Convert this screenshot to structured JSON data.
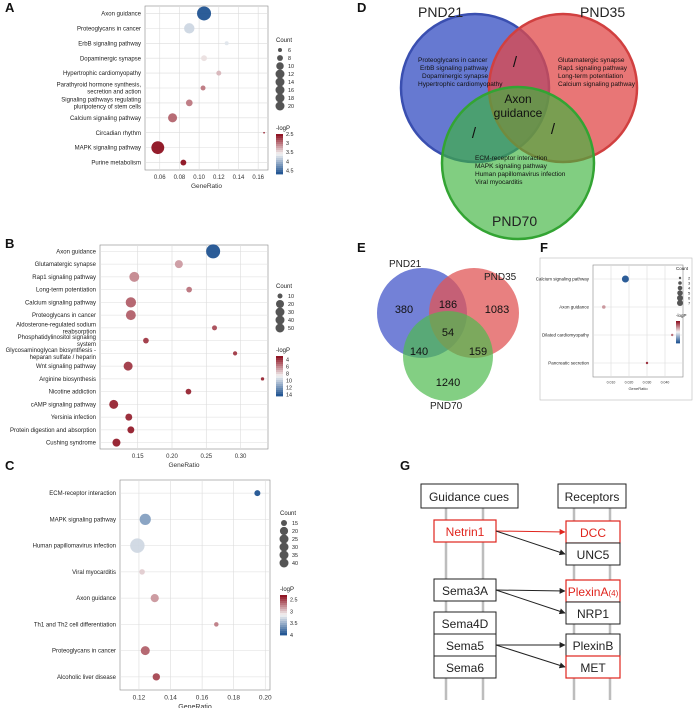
{
  "panel_letters": {
    "A": "A",
    "B": "B",
    "C": "C",
    "D": "D",
    "E": "E",
    "F": "F",
    "G": "G"
  },
  "colors": {
    "low_logp": "#1a4f8f",
    "mid_logp": "#f4f4f4",
    "high_logp": "#8b0a1a",
    "venn_pnd21": "#4b62c9",
    "venn_pnd35": "#e04848",
    "venn_pnd70": "#3db43d",
    "network_highlight": "#e0241d"
  },
  "chart_data": [
    {
      "panel": "A",
      "type": "scatter",
      "xlabel": "GeneRatio",
      "xlim": [
        0.045,
        0.17
      ],
      "xticks": [
        0.06,
        0.08,
        0.1,
        0.12,
        0.14,
        0.16
      ],
      "xtick_labels": [
        "0.06",
        "0.08",
        "0.10",
        "0.12",
        "0.14",
        "0.16"
      ],
      "categories": [
        "Axon guidance",
        "Proteoglycans in cancer",
        "ErbB signaling pathway",
        "Dopaminergic synapse",
        "Hypertrophic cardiomyopathy",
        "Parathyroid hormone synthesis, secretion and action",
        "Signaling pathways regulating pluripotency of stem cells",
        "Calcium signaling pathway",
        "Circadian rhythm",
        "MAPK signaling pathway",
        "Purine metabolism"
      ],
      "category_lines": [
        [
          "Axon guidance"
        ],
        [
          "Proteoglycans in cancer"
        ],
        [
          "ErbB signaling pathway"
        ],
        [
          "Dopaminergic synapse"
        ],
        [
          "Hypertrophic cardiomyopathy"
        ],
        [
          "Parathyroid hormone synthesis,",
          "secretion and action"
        ],
        [
          "Signaling pathways regulating",
          "pluripotency of stem cells"
        ],
        [
          "Calcium signaling pathway"
        ],
        [
          "Circadian rhythm"
        ],
        [
          "MAPK signaling pathway"
        ],
        [
          "Purine metabolism"
        ]
      ],
      "x": [
        0.105,
        0.09,
        0.128,
        0.105,
        0.12,
        0.104,
        0.09,
        0.073,
        0.166,
        0.058,
        0.084
      ],
      "count": [
        20,
        14,
        6,
        8,
        7,
        7,
        9,
        12,
        4,
        18,
        8
      ],
      "logp": [
        4.7,
        3.8,
        3.7,
        3.5,
        3.3,
        3.0,
        3.0,
        2.9,
        2.6,
        2.5,
        2.5
      ],
      "size_legend_title": "Count",
      "size_legend": [
        6,
        8,
        10,
        12,
        14,
        16,
        18,
        20
      ],
      "color_legend_title": "-logP",
      "color_legend_ticks": [
        2.5,
        3.0,
        3.5,
        4.0,
        4.5
      ],
      "color_range": [
        2.5,
        4.7
      ]
    },
    {
      "panel": "B",
      "type": "scatter",
      "xlabel": "GeneRatio",
      "xlim": [
        0.095,
        0.34
      ],
      "xticks": [
        0.15,
        0.2,
        0.25,
        0.3
      ],
      "xtick_labels": [
        "0.15",
        "0.20",
        "0.25",
        "0.30"
      ],
      "categories": [
        "Axon guidance",
        "Glutamatergic synapse",
        "Rap1 signaling pathway",
        "Long-term potentiation",
        "Calcium signaling pathway",
        "Proteoglycans in cancer",
        "Aldosterone-regulated sodium reabsorption",
        "Phosphatidylinositol signaling system",
        "Glycosaminoglycan biosynthesis - heparan sulfate / heparin",
        "Wnt signaling pathway",
        "Arginine biosynthesis",
        "Nicotine addiction",
        "cAMP signaling pathway",
        "Yersinia infection",
        "Protein digestion and absorption",
        "Cushing syndrome"
      ],
      "category_lines": [
        [
          "Axon guidance"
        ],
        [
          "Glutamatergic synapse"
        ],
        [
          "Rap1 signaling pathway"
        ],
        [
          "Long-term potentiation"
        ],
        [
          "Calcium signaling pathway"
        ],
        [
          "Proteoglycans in cancer"
        ],
        [
          "Aldosterone-regulated sodium",
          "reabsorption"
        ],
        [
          "Phosphatidylinositol signaling",
          "system"
        ],
        [
          "Glycosaminoglycan biosynthesis -",
          "heparan sulfate / heparin"
        ],
        [
          "Wnt signaling pathway"
        ],
        [
          "Arginine biosynthesis"
        ],
        [
          "Nicotine addiction"
        ],
        [
          "cAMP signaling pathway"
        ],
        [
          "Yersinia infection"
        ],
        [
          "Protein digestion and absorption"
        ],
        [
          "Cushing syndrome"
        ]
      ],
      "x": [
        0.26,
        0.21,
        0.145,
        0.225,
        0.14,
        0.14,
        0.262,
        0.162,
        0.292,
        0.136,
        0.332,
        0.224,
        0.115,
        0.137,
        0.14,
        0.119
      ],
      "count": [
        50,
        20,
        28,
        12,
        30,
        28,
        10,
        12,
        8,
        24,
        6,
        12,
        24,
        16,
        16,
        20
      ],
      "logp": [
        14.5,
        6.5,
        6.0,
        5.5,
        5.0,
        5.0,
        4.5,
        4.0,
        4.0,
        4.0,
        3.5,
        3.5,
        3.5,
        3.5,
        3.3,
        3.3
      ],
      "size_legend_title": "Count",
      "size_legend": [
        10,
        20,
        30,
        40,
        50
      ],
      "color_legend_title": "-logP",
      "color_legend_ticks": [
        4,
        6,
        8,
        10,
        12,
        14
      ],
      "color_range": [
        3,
        14.5
      ]
    },
    {
      "panel": "C",
      "type": "scatter",
      "xlabel": "GeneRatio",
      "xlim": [
        0.108,
        0.203
      ],
      "xticks": [
        0.12,
        0.14,
        0.16,
        0.18,
        0.2
      ],
      "xtick_labels": [
        "0.12",
        "0.14",
        "0.16",
        "0.18",
        "0.20"
      ],
      "categories": [
        "ECM-receptor interaction",
        "MAPK signaling pathway",
        "Human papillomavirus infection",
        "Viral myocarditis",
        "Axon guidance",
        "Th1 and Th2 cell differentiation",
        "Proteoglycans in cancer",
        "Alcoholic liver disease"
      ],
      "category_lines": [
        [
          "ECM-receptor interaction"
        ],
        [
          "MAPK signaling pathway"
        ],
        [
          "Human papillomavirus infection"
        ],
        [
          "Viral myocarditis"
        ],
        [
          "Axon guidance"
        ],
        [
          "Th1 and Th2 cell differentiation"
        ],
        [
          "Proteoglycans in cancer"
        ],
        [
          "Alcoholic liver disease"
        ]
      ],
      "x": [
        0.195,
        0.124,
        0.119,
        0.122,
        0.13,
        0.169,
        0.124,
        0.131
      ],
      "count": [
        15,
        28,
        38,
        14,
        20,
        12,
        22,
        18
      ],
      "logp": [
        4.0,
        3.6,
        3.3,
        3.0,
        2.8,
        2.7,
        2.6,
        2.5
      ],
      "size_legend_title": "Count",
      "size_legend": [
        15,
        20,
        25,
        30,
        35,
        40
      ],
      "color_legend_title": "-logP",
      "color_legend_ticks": [
        2.5,
        3.0,
        3.5,
        4.0
      ],
      "color_range": [
        2.3,
        4.0
      ]
    },
    {
      "panel": "F",
      "type": "scatter",
      "xlabel": "GeneRatio",
      "xlim": [
        0.0,
        0.05
      ],
      "xticks": [
        0.01,
        0.02,
        0.03,
        0.04
      ],
      "xtick_labels": [
        "0.010",
        "0.020",
        "0.030",
        "0.040"
      ],
      "categories": [
        "Calcium signaling pathway",
        "Axon guidance",
        "Dilated cardiomyopathy",
        "Pancreatic secretion"
      ],
      "category_lines": [
        [
          "Calcium signaling pathway"
        ],
        [
          "Axon guidance"
        ],
        [
          "Dilated cardiomyopathy"
        ],
        [
          "Pancreatic secretion"
        ]
      ],
      "x": [
        0.018,
        0.006,
        0.044,
        0.03
      ],
      "count": [
        7,
        3,
        2,
        2
      ],
      "logp": [
        4.5,
        3.0,
        2.8,
        2.5
      ],
      "size_legend_title": "Count",
      "size_legend": [
        2,
        3,
        4,
        5,
        6,
        7
      ],
      "color_legend_title": "-logP",
      "color_legend_ticks": [],
      "color_range": [
        2.4,
        4.5
      ]
    }
  ],
  "venn_d": {
    "pnd21_label": "PND21",
    "pnd35_label": "PND35",
    "pnd70_label": "PND70",
    "pnd21_items": [
      "Proteoglycans in cancer",
      "ErbB signaling pathway",
      "Dopaminergic synapse",
      "Hypertrophic cardiomyopathy"
    ],
    "pnd35_items": [
      "Glutamatergic synapse",
      "Rap1 signaling pathway",
      "Long-term potentiation",
      "Calcium signaling pathway"
    ],
    "pnd70_items": [
      "ECM-receptor interaction",
      "MAPK signaling pathway",
      "Human papillomavirus infection",
      "Viral myocarditis"
    ],
    "center_lines": [
      "Axon",
      "guidance"
    ],
    "slash_mark": "/"
  },
  "venn_e": {
    "pnd21_label": "PND21",
    "pnd35_label": "PND35",
    "pnd70_label": "PND70",
    "only_21": "380",
    "only_35": "1083",
    "only_70": "1240",
    "ab": "186",
    "ac": "140",
    "bc": "159",
    "abc": "54"
  },
  "network_g": {
    "col1_header": "Guidance cues",
    "col2_header": "Receptors",
    "ligands": [
      "Netrin1",
      "Sema3A",
      "Sema4D",
      "Sema5",
      "Sema6"
    ],
    "receptors": [
      "DCC",
      "UNC5",
      "PlexinA",
      "NRP1",
      "PlexinB",
      "MET"
    ],
    "plexina_suffix": "(4)",
    "highlighted_ligands": [
      "Netrin1"
    ],
    "highlighted_receptors": [
      "DCC",
      "PlexinA",
      "MET"
    ]
  }
}
